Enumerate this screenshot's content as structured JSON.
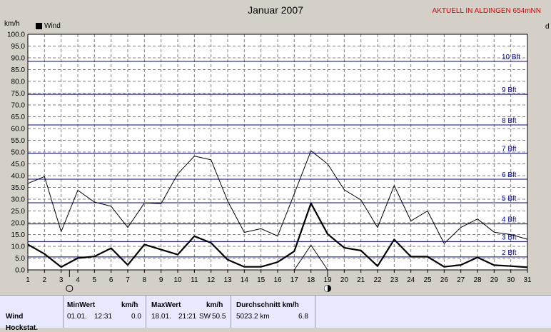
{
  "header": {
    "title": "Januar 2007",
    "station": "AKTUELL IN ALDINGEN 654mNN",
    "unit_left": "km/h",
    "unit_right": "d"
  },
  "legend": {
    "label": "Wind"
  },
  "chart_data": {
    "type": "line",
    "title": "Januar 2007",
    "ylabel": "km/h",
    "ylim": [
      0,
      100
    ],
    "y_ticks": [
      "0.0",
      "5.0",
      "10.0",
      "15.0",
      "20.0",
      "25.0",
      "30.0",
      "35.0",
      "40.0",
      "45.0",
      "50.0",
      "55.0",
      "60.0",
      "65.0",
      "70.0",
      "75.0",
      "80.0",
      "85.0",
      "90.0",
      "95.0",
      "100.0"
    ],
    "x": [
      1,
      2,
      3,
      4,
      5,
      6,
      7,
      8,
      9,
      10,
      11,
      12,
      13,
      14,
      15,
      16,
      17,
      18,
      19,
      20,
      21,
      22,
      23,
      24,
      25,
      26,
      27,
      28,
      29,
      30,
      31
    ],
    "x_ticks": [
      "1",
      "2",
      "3",
      "4",
      "5",
      "6",
      "7",
      "8",
      "9",
      "10",
      "11",
      "12",
      "13",
      "14",
      "15",
      "16",
      "17",
      "18",
      "19",
      "20",
      "21",
      "22",
      "23",
      "24",
      "25",
      "26",
      "27",
      "28",
      "29",
      "30",
      "31"
    ],
    "series": [
      {
        "name": "Wind",
        "style": "mean",
        "values": [
          10.8,
          6.8,
          1.2,
          5.0,
          5.7,
          9.2,
          2.1,
          10.8,
          8.6,
          6.5,
          14.3,
          11.5,
          4.3,
          1.3,
          1.3,
          3.3,
          7.9,
          28.3,
          15.2,
          9.4,
          8.2,
          1.6,
          12.9,
          5.6,
          5.6,
          1.3,
          2.1,
          5.3,
          2.0,
          1.6,
          1.1
        ]
      },
      {
        "style": "max",
        "values": [
          36.7,
          39.6,
          16.2,
          33.8,
          28.8,
          27.0,
          18.0,
          28.4,
          28.1,
          40.7,
          48.3,
          46.7,
          29.2,
          15.9,
          17.5,
          14.4,
          32.3,
          50.5,
          45.0,
          34.0,
          29.7,
          18.0,
          35.8,
          20.8,
          25.0,
          11.2,
          18.0,
          21.6,
          16.0,
          15.0,
          13.0
        ]
      },
      {
        "style": "min",
        "values": [
          null,
          null,
          null,
          null,
          null,
          null,
          null,
          null,
          null,
          null,
          null,
          null,
          null,
          null,
          null,
          null,
          0.0,
          10.5,
          0.0,
          null,
          null,
          null,
          null,
          null,
          null,
          null,
          null,
          null,
          null,
          null,
          null
        ]
      }
    ],
    "beaufort": [
      {
        "label": "2 Bft",
        "kmh": 5.5
      },
      {
        "label": "3 Bft",
        "kmh": 12.0
      },
      {
        "label": "4 Bft",
        "kmh": 19.5
      },
      {
        "label": "5 Bft",
        "kmh": 28.5
      },
      {
        "label": "6 Bft",
        "kmh": 38.5
      },
      {
        "label": "7 Bft",
        "kmh": 49.5
      },
      {
        "label": "8 Bft",
        "kmh": 61.5
      },
      {
        "label": "9 Bft",
        "kmh": 74.5
      },
      {
        "label": "10 Bft",
        "kmh": 88.5
      }
    ],
    "moon_phases": [
      {
        "day": 3.5,
        "phase": "full"
      },
      {
        "day": 19.0,
        "phase": "new"
      }
    ],
    "colors": {
      "beaufort": "#000099",
      "grid": "#808080",
      "plot_bg": "#ffffff"
    }
  },
  "stats": {
    "row_label": "Wind",
    "row_label_2": "Hockstat.",
    "min": {
      "header": "MinWert",
      "unit": "km/h",
      "date": "01.01.",
      "time": "12:31",
      "value": "0.0"
    },
    "max": {
      "header": "MaxWert",
      "unit": "km/h",
      "date": "18.01.",
      "time": "21:21",
      "dir": "SW",
      "value": "50.5"
    },
    "avg": {
      "header": "Durchschnitt km/h",
      "distance": "5023.2 km",
      "value": "6.8"
    }
  }
}
